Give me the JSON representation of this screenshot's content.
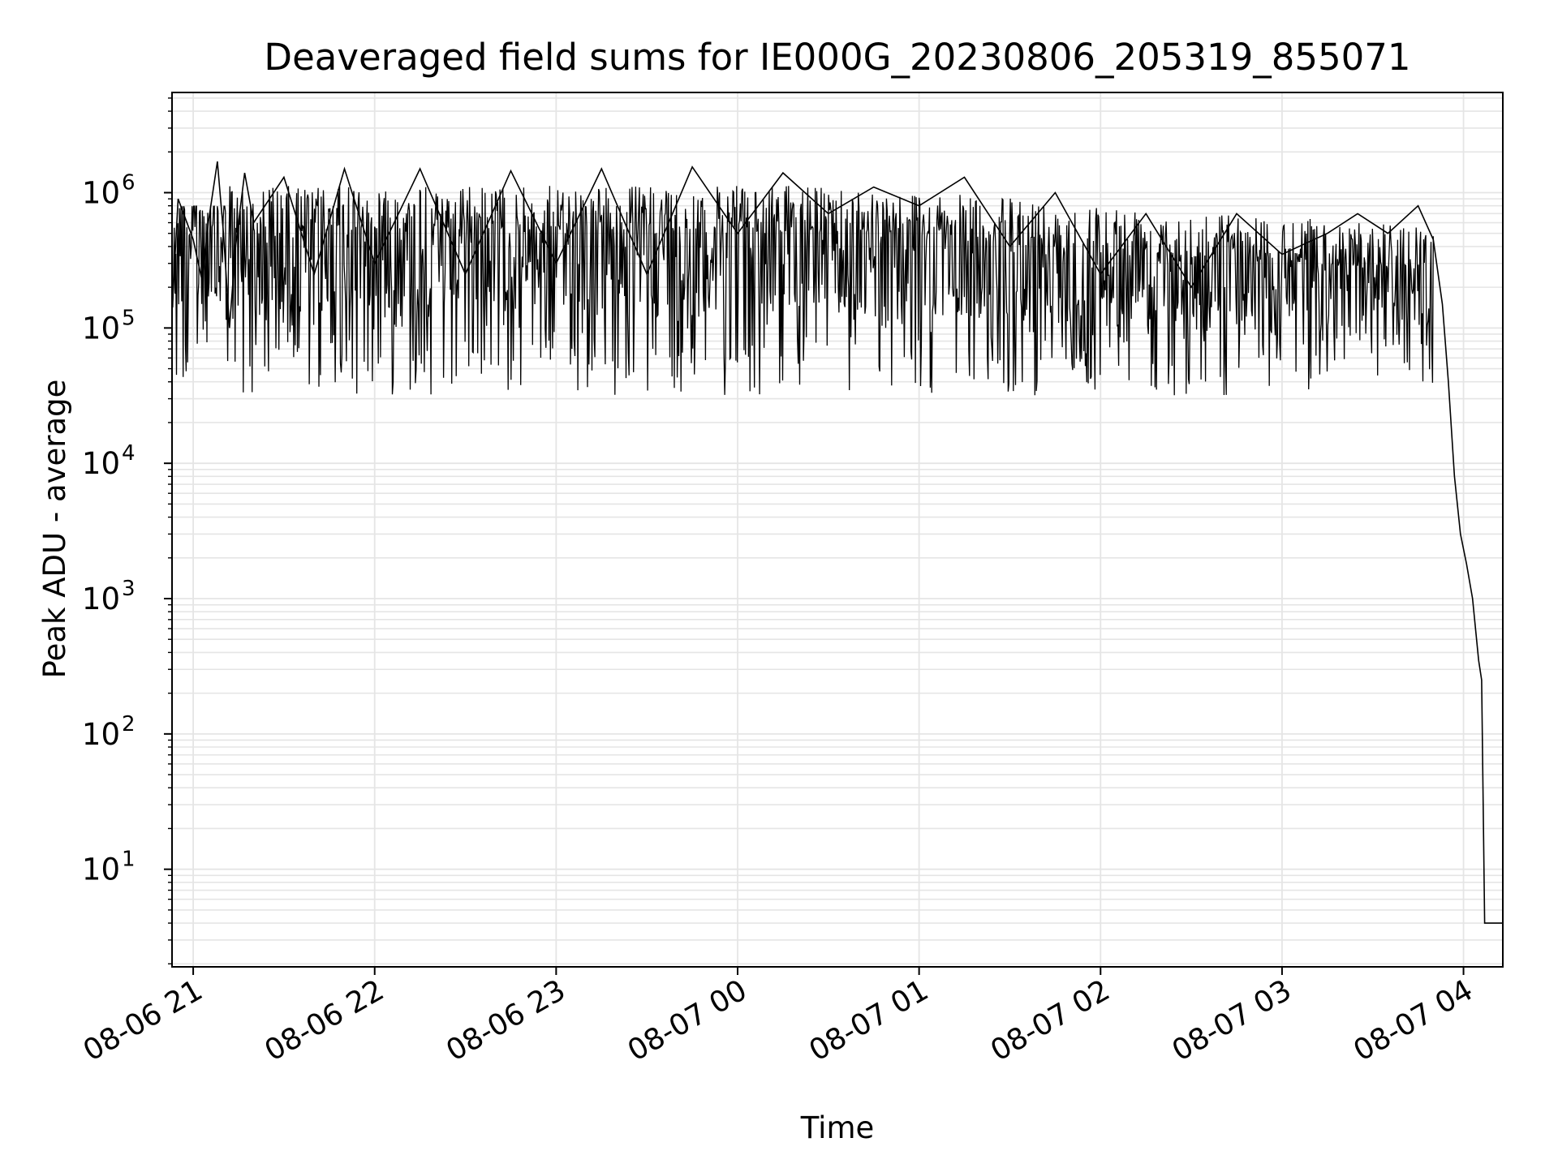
{
  "chart_data": {
    "type": "line",
    "title": "Deaveraged field sums for IE000G_20230806_205319_855071",
    "xlabel": "Time",
    "ylabel": "Peak ADU - average",
    "y_scale": "log",
    "ylim": [
      1.9,
      5500000
    ],
    "xlim": [
      "2023-08-06 20:53",
      "2023-08-07 04:13"
    ],
    "x_ticks": [
      "08-06 21",
      "08-06 22",
      "08-06 23",
      "08-07 00",
      "08-07 01",
      "08-07 02",
      "08-07 03",
      "08-07 04"
    ],
    "y_ticks": [
      {
        "base": "10",
        "exp": "1"
      },
      {
        "base": "10",
        "exp": "2"
      },
      {
        "base": "10",
        "exp": "3"
      },
      {
        "base": "10",
        "exp": "4"
      },
      {
        "base": "10",
        "exp": "5"
      },
      {
        "base": "10",
        "exp": "6"
      }
    ],
    "grid": true,
    "line_color": "#000000",
    "grid_color": "#e5e5e5",
    "series": [
      {
        "x": [
          "2023-08-06 20:53",
          "2023-08-06 20:55",
          "2023-08-06 21:00",
          "2023-08-06 21:03",
          "2023-08-06 21:05",
          "2023-08-06 21:08",
          "2023-08-06 21:10",
          "2023-08-06 21:12",
          "2023-08-06 21:14",
          "2023-08-06 21:17",
          "2023-08-06 21:20",
          "2023-08-06 21:30",
          "2023-08-06 21:40",
          "2023-08-06 21:50",
          "2023-08-06 22:00",
          "2023-08-06 22:15",
          "2023-08-06 22:30",
          "2023-08-06 22:45",
          "2023-08-06 23:00",
          "2023-08-06 23:15",
          "2023-08-06 23:30",
          "2023-08-06 23:45",
          "2023-08-07 00:00",
          "2023-08-07 00:15",
          "2023-08-07 00:30",
          "2023-08-07 00:45",
          "2023-08-07 01:00",
          "2023-08-07 01:15",
          "2023-08-07 01:30",
          "2023-08-07 01:45",
          "2023-08-07 02:00",
          "2023-08-07 02:15",
          "2023-08-07 02:30",
          "2023-08-07 02:45",
          "2023-08-07 03:00",
          "2023-08-07 03:15",
          "2023-08-07 03:25",
          "2023-08-07 03:35",
          "2023-08-07 03:45",
          "2023-08-07 03:50",
          "2023-08-07 03:53",
          "2023-08-07 03:55",
          "2023-08-07 03:57",
          "2023-08-07 03:59",
          "2023-08-07 04:01",
          "2023-08-07 04:03",
          "2023-08-07 04:05",
          "2023-08-07 04:06",
          "2023-08-07 04:07",
          "2023-08-07 04:08",
          "2023-08-07 04:13"
        ],
        "y": [
          130000,
          900000,
          450000,
          220000,
          600000,
          1700000,
          500000,
          100000,
          400000,
          1400000,
          600000,
          1300000,
          250000,
          1500000,
          300000,
          1500000,
          250000,
          1450000,
          300000,
          1500000,
          250000,
          1550000,
          500000,
          1400000,
          700000,
          1100000,
          800000,
          1300000,
          400000,
          1000000,
          250000,
          700000,
          200000,
          700000,
          350000,
          500000,
          700000,
          500000,
          800000,
          450000,
          150000,
          40000,
          8000,
          3000,
          1800,
          1000,
          350,
          250,
          4,
          4,
          4
        ]
      }
    ]
  }
}
